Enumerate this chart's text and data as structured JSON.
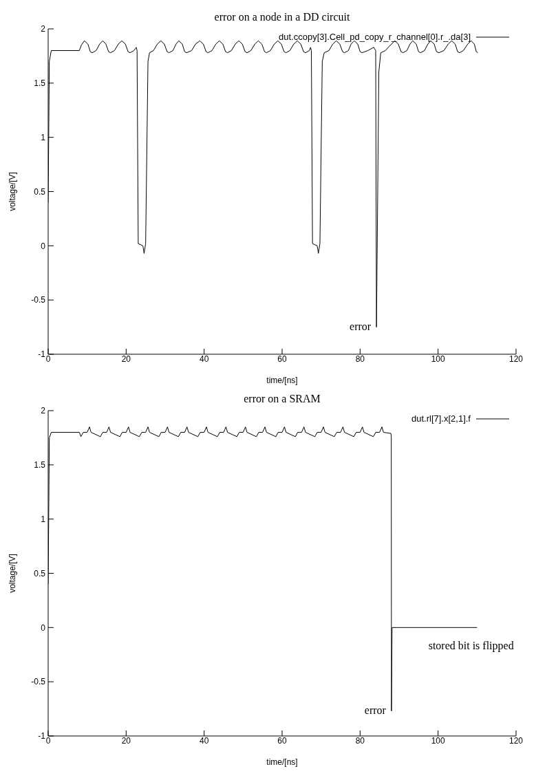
{
  "chart_data": [
    {
      "type": "line",
      "title": "error on a node in a DD circuit",
      "xlabel": "time/[ns]",
      "ylabel": "voltage/[V]",
      "xlim": [
        0,
        120
      ],
      "xticks": [
        0,
        20,
        40,
        60,
        80,
        100,
        120
      ],
      "ylim": [
        -1,
        2
      ],
      "yticks": [
        -1,
        -0.5,
        0,
        0.5,
        1,
        1.5,
        2
      ],
      "legend": "top right",
      "marker": "none",
      "line_style": "solid",
      "annotations": [
        {
          "text": "error",
          "x": 84.2,
          "y": -0.75
        }
      ],
      "series": [
        {
          "name": "dut.ccopy[3].Cell_pd_copy_r_channel[0].r_.da[3]",
          "color": "#000000",
          "x": [
            0,
            0.3,
            0.8,
            8,
            8.5,
            9.3,
            10.2,
            10.8,
            11.3,
            12.3,
            13.2,
            14,
            14.8,
            15.5,
            16,
            17,
            18,
            18.9,
            19.8,
            20.5,
            21,
            22,
            22.6,
            22.8,
            23.1,
            24.3,
            24.6,
            25,
            25.6,
            26,
            27,
            28,
            28.9,
            29.8,
            30.5,
            31,
            32,
            32.8,
            33.5,
            34.4,
            35,
            35.5,
            36.8,
            37.8,
            38.9,
            39.8,
            40.5,
            41,
            42,
            43,
            43.9,
            44.8,
            45.5,
            46,
            47,
            48,
            48.9,
            49.8,
            50.5,
            51,
            52,
            53,
            53.9,
            54.8,
            55.5,
            56,
            57,
            58,
            58.9,
            59.8,
            60.5,
            61,
            62,
            63,
            63.9,
            64.8,
            65.5,
            66,
            67,
            67.3,
            67.5,
            67.8,
            69,
            69.3,
            69.7,
            70.3,
            70.8,
            72,
            73,
            73.9,
            74.8,
            75.5,
            76,
            77,
            77.7,
            78.5,
            79.4,
            80,
            80.5,
            82,
            83.5,
            84,
            84.2,
            84.8,
            85.3,
            86.5,
            87.5,
            88.9,
            89.8,
            90.5,
            91,
            92,
            92.8,
            93.5,
            94.4,
            95,
            95.5,
            96.5,
            97.4,
            98.1,
            99,
            99.6,
            100.2,
            101.5,
            102.6,
            103.5,
            104.4,
            105,
            105.5,
            106.5,
            107.6,
            108.5,
            109.3,
            109.8,
            110.2
          ],
          "values": [
            0.4,
            1.7,
            1.8,
            1.8,
            1.85,
            1.89,
            1.86,
            1.79,
            1.78,
            1.8,
            1.86,
            1.89,
            1.86,
            1.79,
            1.78,
            1.8,
            1.86,
            1.89,
            1.86,
            1.79,
            1.78,
            1.8,
            1.83,
            1.8,
            0.02,
            0,
            -0.07,
            0.02,
            1.7,
            1.78,
            1.8,
            1.86,
            1.89,
            1.86,
            1.79,
            1.78,
            1.8,
            1.86,
            1.89,
            1.86,
            1.79,
            1.78,
            1.8,
            1.86,
            1.89,
            1.86,
            1.79,
            1.78,
            1.8,
            1.86,
            1.89,
            1.86,
            1.79,
            1.78,
            1.8,
            1.86,
            1.89,
            1.86,
            1.79,
            1.78,
            1.8,
            1.86,
            1.89,
            1.86,
            1.79,
            1.78,
            1.8,
            1.86,
            1.89,
            1.86,
            1.79,
            1.78,
            1.8,
            1.86,
            1.89,
            1.86,
            1.79,
            1.78,
            1.8,
            1.83,
            1.8,
            0.02,
            0,
            -0.07,
            0.02,
            1.7,
            1.78,
            1.8,
            1.86,
            1.89,
            1.86,
            1.79,
            1.78,
            1.8,
            1.86,
            1.89,
            1.86,
            1.79,
            1.78,
            1.8,
            1.83,
            1.8,
            -0.75,
            1.6,
            1.78,
            1.8,
            1.84,
            1.89,
            1.86,
            1.79,
            1.78,
            1.8,
            1.86,
            1.89,
            1.86,
            1.79,
            1.78,
            1.8,
            1.86,
            1.89,
            1.86,
            1.79,
            1.78,
            1.8,
            1.86,
            1.89,
            1.86,
            1.79,
            1.78,
            1.8,
            1.86,
            1.89,
            1.86,
            1.79,
            1.78
          ]
        }
      ]
    },
    {
      "type": "line",
      "title": "error on a SRAM",
      "xlabel": "time/[ns]",
      "ylabel": "voltage/[V]",
      "xlim": [
        0,
        120
      ],
      "xticks": [
        0,
        20,
        40,
        60,
        80,
        100,
        120
      ],
      "ylim": [
        -1,
        2
      ],
      "yticks": [
        -1,
        -0.5,
        0,
        0.5,
        1,
        1.5,
        2
      ],
      "legend": "top right",
      "marker": "none",
      "line_style": "solid",
      "annotations": [
        {
          "text": "error",
          "x": 88.05,
          "y": -0.77
        },
        {
          "text": "stored bit is flipped",
          "x": 100,
          "y": 0
        }
      ],
      "series": [
        {
          "name": "dut.rl[7].x[2,1].f",
          "color": "#000000",
          "x": [
            0,
            0.3,
            0.8,
            8,
            8.4,
            9,
            10,
            10.6,
            11,
            13.4,
            14,
            15,
            15.6,
            16,
            18.4,
            19,
            20,
            20.6,
            21,
            23.4,
            24,
            25,
            25.6,
            26,
            28.4,
            29,
            30,
            30.6,
            31,
            33.4,
            34,
            35,
            35.6,
            36,
            38.4,
            39,
            40,
            40.6,
            41,
            43.4,
            44,
            45,
            45.6,
            46,
            48.4,
            49,
            50,
            50.6,
            51,
            53.4,
            54,
            55,
            55.6,
            56,
            58.4,
            59,
            60,
            60.6,
            61,
            63.4,
            64,
            65,
            65.6,
            66,
            68.4,
            69,
            70,
            70.6,
            71,
            73.4,
            74,
            75,
            75.6,
            76,
            78.4,
            79,
            80,
            80.6,
            81,
            83.4,
            84,
            85,
            85.6,
            86,
            87.9,
            88,
            88.05,
            88.2,
            110
          ],
          "values": [
            0.4,
            1.75,
            1.8,
            1.8,
            1.76,
            1.8,
            1.8,
            1.85,
            1.8,
            1.76,
            1.8,
            1.8,
            1.85,
            1.8,
            1.76,
            1.8,
            1.8,
            1.85,
            1.8,
            1.76,
            1.8,
            1.8,
            1.85,
            1.8,
            1.76,
            1.8,
            1.8,
            1.85,
            1.8,
            1.76,
            1.8,
            1.8,
            1.85,
            1.8,
            1.76,
            1.8,
            1.8,
            1.85,
            1.8,
            1.76,
            1.8,
            1.8,
            1.85,
            1.8,
            1.76,
            1.8,
            1.8,
            1.85,
            1.8,
            1.76,
            1.8,
            1.8,
            1.85,
            1.8,
            1.76,
            1.8,
            1.8,
            1.85,
            1.8,
            1.76,
            1.8,
            1.8,
            1.85,
            1.8,
            1.76,
            1.8,
            1.8,
            1.85,
            1.8,
            1.76,
            1.8,
            1.8,
            1.85,
            1.8,
            1.76,
            1.8,
            1.8,
            1.85,
            1.8,
            1.76,
            1.8,
            1.8,
            1.85,
            1.8,
            1.79,
            1.76,
            -0.77,
            0,
            0
          ]
        }
      ]
    }
  ]
}
